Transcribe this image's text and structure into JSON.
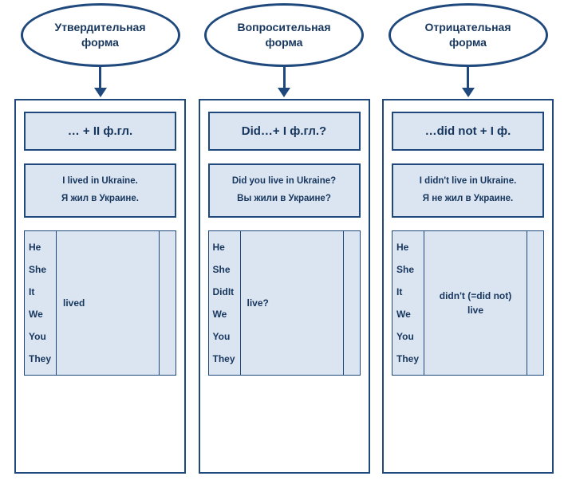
{
  "colors": {
    "border": "#1f497d",
    "fill": "#dbe5f1",
    "text": "#17365d"
  },
  "columns": [
    {
      "title_line1": "Утвердительная",
      "title_line2": "форма",
      "formula": "… + II ф.гл.",
      "example_en": "I lived in Ukraine.",
      "example_ru": "Я жил в Украине.",
      "pronouns": [
        "He",
        "She",
        "It",
        "We",
        "You",
        "They"
      ],
      "verb_lines": [
        "lived"
      ],
      "verb_align": "left"
    },
    {
      "title_line1": "Вопросительная",
      "title_line2": "форма",
      "formula": "Did…+ I ф.гл.?",
      "example_en": "Did you live in Ukraine?",
      "example_ru": "Вы жили в Украине?",
      "pronouns": [
        "He",
        "She",
        "DidIt",
        "We",
        "You",
        "They"
      ],
      "verb_lines": [
        "live?"
      ],
      "verb_align": "left"
    },
    {
      "title_line1": "Отрицательная",
      "title_line2": "форма",
      "formula": "…did not + I ф.",
      "example_en": "I didn't live in Ukraine.",
      "example_ru": "Я не жил в Украине.",
      "pronouns": [
        "He",
        "She",
        "It",
        "We",
        "You",
        "They"
      ],
      "verb_lines": [
        "didn't (=did not)",
        "live"
      ],
      "verb_align": "center"
    }
  ]
}
